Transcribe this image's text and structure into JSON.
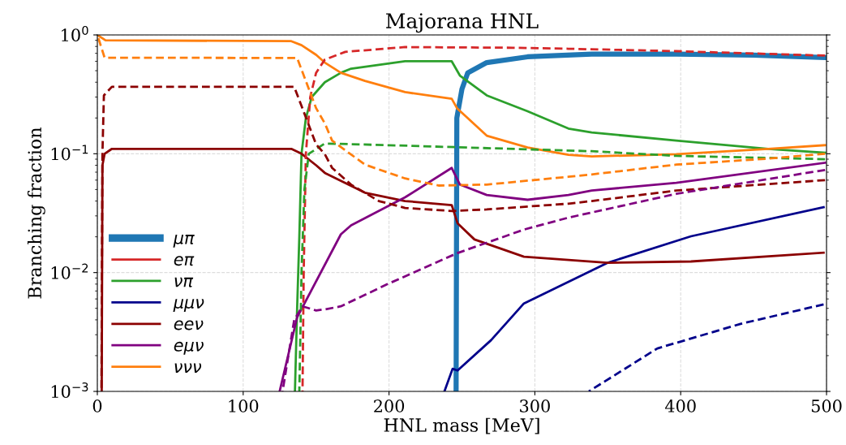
{
  "chart_data": {
    "type": "line",
    "title": "Majorana HNL",
    "xlabel": "HNL mass [MeV]",
    "ylabel": "Branching fraction",
    "log": "y",
    "grid": true,
    "legend": "lower left",
    "xlim": [
      0,
      500
    ],
    "xticks": [
      0,
      100,
      200,
      300,
      400,
      500
    ],
    "ylim": [
      0.001,
      1
    ],
    "yticks": [
      {
        "value": 0.001,
        "label": "10$^{−3}$"
      },
      {
        "value": 0.01,
        "label": "10$^{−2}$"
      },
      {
        "value": 0.1,
        "label": "10$^{−1}$"
      },
      {
        "value": 1,
        "label": "10$^{0}$"
      }
    ],
    "series": [
      {
        "name": "μπ",
        "color": "#1f77b4",
        "line_style": "solid",
        "x": [
          246,
          246.5,
          250,
          254,
          267,
          295,
          339,
          397,
          450,
          499
        ],
        "values": [
          0.001,
          0.2,
          0.35,
          0.48,
          0.585,
          0.654,
          0.69,
          0.69,
          0.675,
          0.645
        ]
      },
      {
        "name": "eπ",
        "color": "#d62728",
        "line_style": "solid"
      },
      {
        "name": "νπ",
        "color": "#2ca02c",
        "line_style": "solid",
        "x": [
          135.5,
          137,
          138.5,
          140,
          143,
          147,
          156,
          167,
          174,
          211,
          243,
          248.6,
          267,
          295,
          323,
          339,
          397,
          460,
          499
        ],
        "values": [
          0.001,
          0.005,
          0.02,
          0.1,
          0.2,
          0.3,
          0.4,
          0.48,
          0.52,
          0.6,
          0.6,
          0.455,
          0.31,
          0.228,
          0.163,
          0.151,
          0.129,
          0.11,
          0.102
        ]
      },
      {
        "name": "μμν",
        "color": "#00008b",
        "line_style": "solid",
        "x": [
          238,
          243.6,
          247,
          270,
          292.5,
          350,
          407,
          498
        ],
        "values": [
          0.001,
          0.00155,
          0.0015,
          0.0027,
          0.0055,
          0.0121,
          0.0202,
          0.0355
        ]
      },
      {
        "name": "eeν",
        "color": "#8b0000",
        "line_style": "solid",
        "x": [
          3,
          3.5,
          5,
          10,
          133,
          140,
          150,
          156,
          183.5,
          211,
          243,
          247,
          258.6,
          292.5,
          350,
          407,
          498
        ],
        "values": [
          0.001,
          0.08,
          0.1,
          0.11,
          0.11,
          0.1,
          0.08,
          0.069,
          0.047,
          0.04,
          0.037,
          0.026,
          0.019,
          0.0136,
          0.0121,
          0.0124,
          0.0147
        ]
      },
      {
        "name": "eμν",
        "color": "#800080",
        "line_style": "solid",
        "x": [
          125,
          137,
          167,
          174,
          211,
          243,
          248.6,
          267,
          295,
          323,
          339,
          397,
          499
        ],
        "values": [
          0.001,
          0.0042,
          0.021,
          0.025,
          0.043,
          0.076,
          0.055,
          0.045,
          0.041,
          0.045,
          0.049,
          0.057,
          0.084
        ]
      },
      {
        "name": "ννν",
        "color": "#ff7f0e",
        "line_style": "solid",
        "x": [
          0,
          5.6,
          133,
          140,
          150,
          156,
          167,
          183.5,
          211,
          243,
          246.6,
          267,
          295,
          323,
          339,
          397,
          460,
          499
        ],
        "values": [
          1.0,
          0.9,
          0.886,
          0.82,
          0.68,
          0.585,
          0.48,
          0.41,
          0.33,
          0.29,
          0.242,
          0.142,
          0.113,
          0.098,
          0.095,
          0.099,
          0.11,
          0.118
        ]
      },
      {
        "color": "#d62728",
        "line_style": "dashed",
        "x": [
          140.7,
          141.5,
          143,
          146,
          150,
          156,
          170,
          211,
          285,
          323,
          397,
          499
        ],
        "values": [
          0.001,
          0.01,
          0.1,
          0.3,
          0.48,
          0.62,
          0.72,
          0.79,
          0.78,
          0.765,
          0.73,
          0.67
        ]
      },
      {
        "color": "#2ca02c",
        "line_style": "dashed",
        "x": [
          138.5,
          140,
          142,
          145,
          156,
          200,
          339,
          397,
          499
        ],
        "values": [
          0.001,
          0.01,
          0.05,
          0.1,
          0.122,
          0.118,
          0.105,
          0.096,
          0.09
        ]
      },
      {
        "color": "#00008b",
        "line_style": "dashed",
        "x": [
          337,
          384,
          441,
          498
        ],
        "values": [
          0.001,
          0.0023,
          0.0037,
          0.0054
        ]
      },
      {
        "color": "#8b0000",
        "line_style": "dashed",
        "x": [
          2.8,
          3.5,
          4.5,
          10,
          135,
          140.7,
          150,
          156,
          161,
          174,
          193,
          211,
          243,
          267,
          323,
          339,
          397,
          499
        ],
        "values": [
          0.001,
          0.1,
          0.31,
          0.366,
          0.366,
          0.24,
          0.12,
          0.099,
          0.076,
          0.055,
          0.04,
          0.035,
          0.033,
          0.034,
          0.038,
          0.04,
          0.049,
          0.06
        ]
      },
      {
        "color": "#800080",
        "line_style": "dashed",
        "x": [
          127,
          135,
          140.7,
          150,
          156,
          167,
          199,
          247,
          292.5,
          323,
          397,
          499
        ],
        "values": [
          0.001,
          0.004,
          0.0052,
          0.0048,
          0.0049,
          0.0052,
          0.008,
          0.0146,
          0.023,
          0.029,
          0.046,
          0.073
        ]
      },
      {
        "color": "#ff7f0e",
        "line_style": "dashed",
        "x": [
          0,
          5,
          137,
          150,
          156,
          161,
          183.5,
          211,
          234,
          267,
          323,
          339,
          397,
          460,
          499
        ],
        "values": [
          1.0,
          0.643,
          0.64,
          0.242,
          0.18,
          0.129,
          0.081,
          0.062,
          0.054,
          0.055,
          0.064,
          0.067,
          0.081,
          0.091,
          0.1
        ]
      }
    ]
  }
}
